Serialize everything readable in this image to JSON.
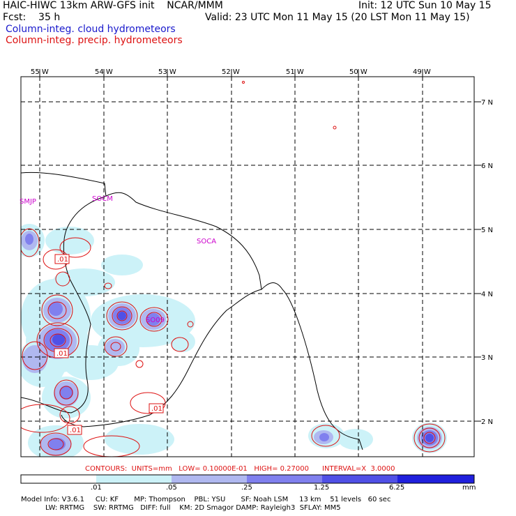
{
  "header": {
    "line1_left": "HAIC-HIWC 13km ARW-GFS init    NCAR/MMM",
    "line1_right": "Init: 12 UTC Sun 10 May 15",
    "line2_left": "Fcst:    35 h",
    "line2_right": "Valid: 23 UTC Mon 11 May 15 (20 LST Mon 11 May 15)",
    "legend_blue": "Column-integ. cloud hydrometeors",
    "legend_red": "Column-integ. precip. hydrometeors"
  },
  "map": {
    "lon_labels": [
      "55 W",
      "54 W",
      "53 W",
      "52 W",
      "51 W",
      "50 W",
      "49 W"
    ],
    "lat_labels": [
      "7 N",
      "6 N",
      "5 N",
      "4 N",
      "3 N",
      "2 N"
    ],
    "stations": [
      "SMJP",
      "SOCM",
      "SOCA",
      "SO09"
    ],
    "contour_labels": [
      ".01",
      ".01",
      ".01",
      ".01"
    ]
  },
  "contours_info": "CONTOURS:  UNITS=mm   LOW= 0.10000E-01   HIGH= 0.27000      INTERVAL=X  3.0000",
  "colorbar": {
    "colors": [
      "#ffffff",
      "#ccf2f8",
      "#b0b8f0",
      "#8080ee",
      "#5050e6",
      "#2020dd"
    ],
    "labels": [
      ".01",
      ".05",
      ".25",
      "1.25",
      "6.25"
    ],
    "unit": "mm"
  },
  "footer": {
    "line1": "Model Info: V3.6.1     CU: KF       MP: Thompson    PBL: YSU       SF: Noah LSM     13 km    51 levels   60 sec",
    "line2": "           LW: RRTMG    SW: RRTMG   DIFF: full    KM: 2D Smagor DAMP: Rayleigh3  SFLAY: MM5"
  }
}
